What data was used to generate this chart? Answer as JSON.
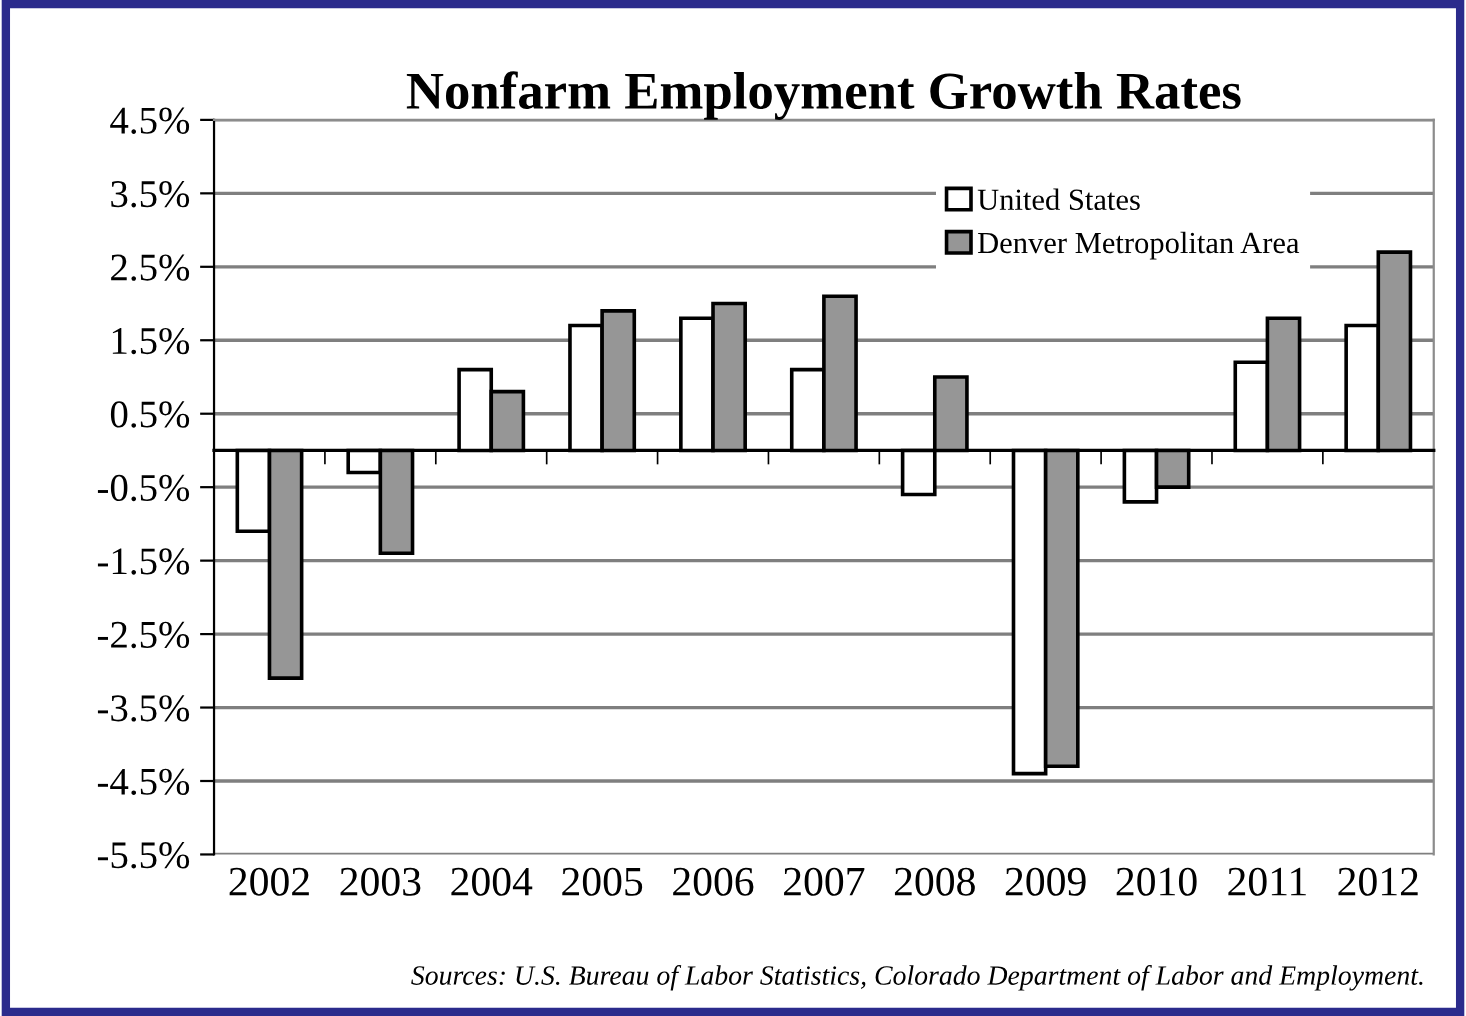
{
  "chart_data": {
    "type": "bar",
    "title": "Nonfarm Employment Growth Rates",
    "categories": [
      "2002",
      "2003",
      "2004",
      "2005",
      "2006",
      "2007",
      "2008",
      "2009",
      "2010",
      "2011",
      "2012"
    ],
    "series": [
      {
        "name": "United States",
        "color": "#ffffff",
        "values": [
          -1.1,
          -0.3,
          1.1,
          1.7,
          1.8,
          1.1,
          -0.6,
          -4.4,
          -0.7,
          1.2,
          1.7
        ]
      },
      {
        "name": "Denver Metropolitan Area",
        "color": "#969696",
        "values": [
          -3.1,
          -1.4,
          0.8,
          1.9,
          2.0,
          2.1,
          1.0,
          -4.3,
          -0.5,
          1.8,
          2.7
        ]
      }
    ],
    "ylim": [
      -5.5,
      4.5
    ],
    "yticks": [
      {
        "value": -5.5,
        "label": "-5.5%"
      },
      {
        "value": -4.5,
        "label": "-4.5%"
      },
      {
        "value": -3.5,
        "label": "-3.5%"
      },
      {
        "value": -2.5,
        "label": "-2.5%"
      },
      {
        "value": -1.5,
        "label": "-1.5%"
      },
      {
        "value": -0.5,
        "label": "-0.5%"
      },
      {
        "value": 0.5,
        "label": "0.5%"
      },
      {
        "value": 1.5,
        "label": "1.5%"
      },
      {
        "value": 2.5,
        "label": "2.5%"
      },
      {
        "value": 3.5,
        "label": "3.5%"
      },
      {
        "value": 4.5,
        "label": "4.5%"
      }
    ],
    "grid": "y",
    "legend": "top right",
    "annotations": [
      "Sources: U.S. Bureau of Labor Statistics, Colorado Department of Labor and Employment."
    ]
  }
}
